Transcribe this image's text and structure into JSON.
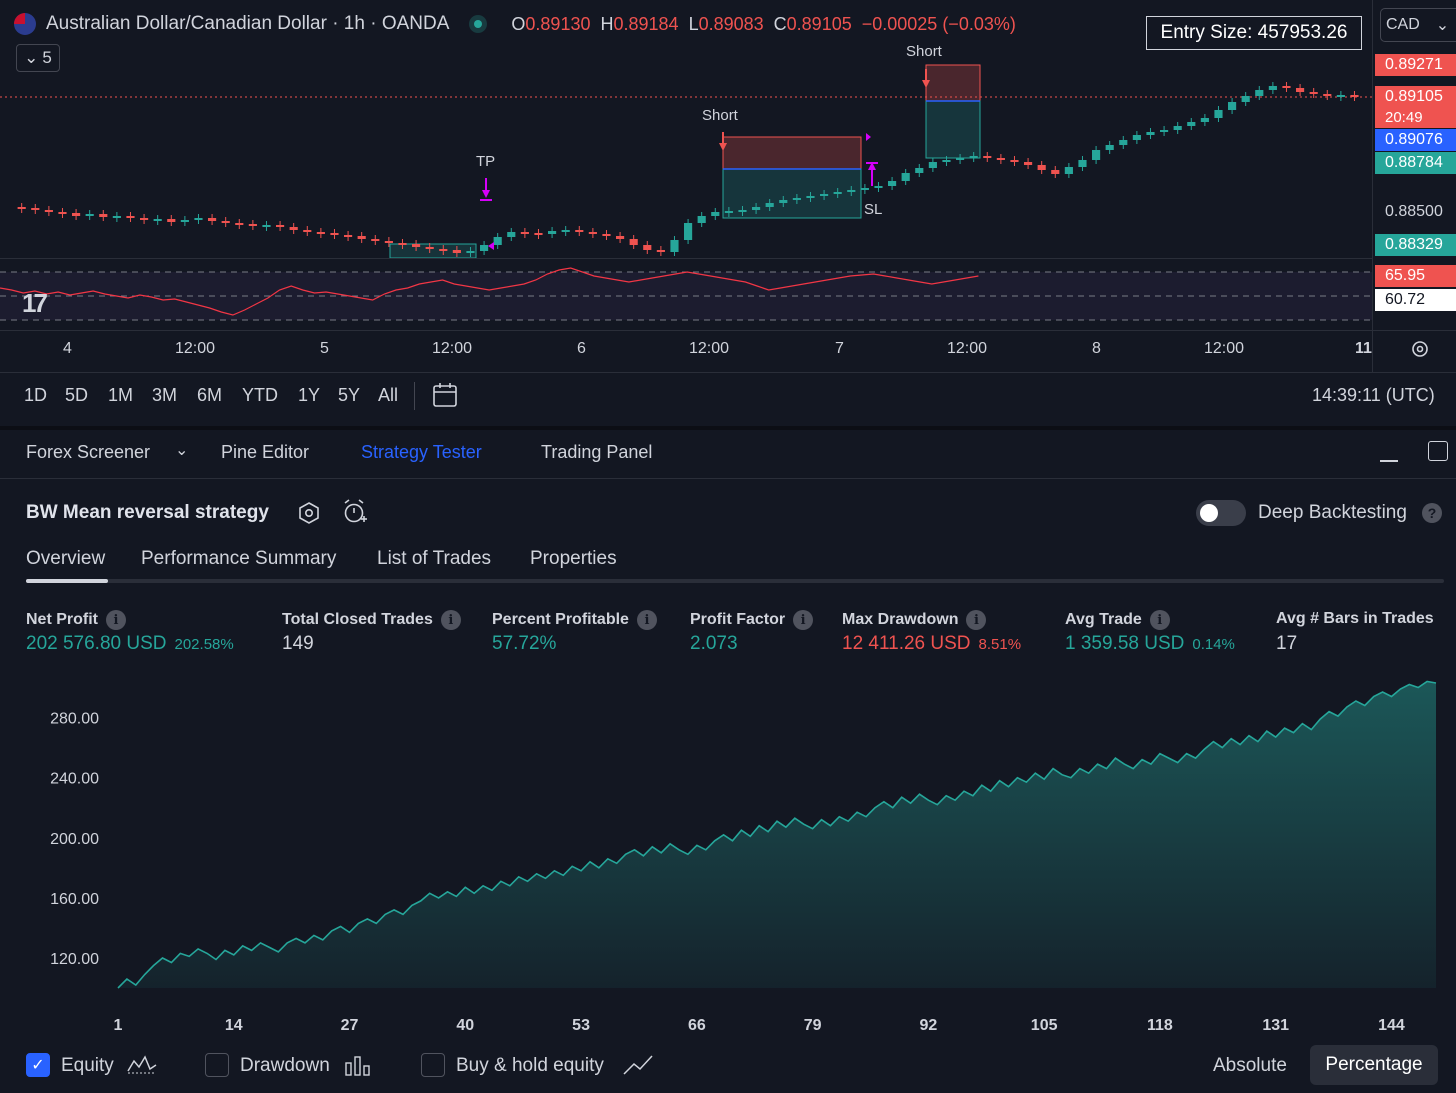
{
  "header": {
    "symbol_title": "Australian Dollar/Canadian Dollar · 1h · OANDA",
    "ohlc": {
      "open_key": "O",
      "open": "0.89130",
      "high_key": "H",
      "high": "0.89184",
      "low_key": "L",
      "low": "0.89083",
      "close_key": "C",
      "close": "0.89105",
      "change": "−0.00025 (−0.03%)"
    },
    "indicator_count": "5",
    "entry_size": "Entry Size: 457953.26",
    "currency": "CAD"
  },
  "price_scale": {
    "tag_short_top": "0.89271",
    "tag_last": "0.89105",
    "tag_countdown": "20:49",
    "tag_blue": "0.89076",
    "tag_green_top": "0.88784",
    "plain_1": "0.88500",
    "tag_green_bottom": "0.88329",
    "rsi_red": "65.95",
    "rsi_white": "60.72"
  },
  "chart_labels": {
    "tp": "TP",
    "short_1": "Short",
    "short_2": "Short",
    "sl": "SL"
  },
  "x_axis": [
    "4",
    "12:00",
    "5",
    "12:00",
    "6",
    "12:00",
    "7",
    "12:00",
    "8",
    "12:00",
    "11"
  ],
  "timeframes": [
    "1D",
    "5D",
    "1M",
    "3M",
    "6M",
    "YTD",
    "1Y",
    "5Y",
    "All"
  ],
  "clock": "14:39:11 (UTC)",
  "panel_tabs": [
    "Forex Screener",
    "Pine Editor",
    "Strategy Tester",
    "Trading Panel"
  ],
  "strategy": {
    "name": "BW Mean reversal strategy",
    "deep_backtesting": "Deep Backtesting",
    "help": "?",
    "sub_tabs": [
      "Overview",
      "Performance Summary",
      "List of Trades",
      "Properties"
    ]
  },
  "metrics": {
    "net_profit": {
      "label": "Net Profit",
      "value": "202 576.80 USD",
      "pct": "202.58%"
    },
    "total_closed_trades": {
      "label": "Total Closed Trades",
      "value": "149"
    },
    "percent_profitable": {
      "label": "Percent Profitable",
      "value": "57.72%"
    },
    "profit_factor": {
      "label": "Profit Factor",
      "value": "2.073"
    },
    "max_drawdown": {
      "label": "Max Drawdown",
      "value": "12 411.26 USD",
      "pct": "8.51%"
    },
    "avg_trade": {
      "label": "Avg Trade",
      "value": "1 359.58 USD",
      "pct": "0.14%"
    },
    "avg_bars": {
      "label": "Avg # Bars in Trades",
      "value": "17"
    }
  },
  "legend": {
    "equity": "Equity",
    "drawdown": "Drawdown",
    "buy_hold": "Buy & hold equity",
    "absolute": "Absolute",
    "percentage": "Percentage"
  },
  "colors": {
    "up": "#26a69a",
    "down": "#ef5350",
    "accent": "#2962ff",
    "rsi": "#f23645"
  },
  "chart_data": {
    "type": "area",
    "series": [
      {
        "x": [
          1,
          2,
          3,
          4,
          5,
          6,
          7,
          8,
          9,
          10,
          11,
          12,
          13,
          14,
          15,
          16,
          17,
          18,
          19,
          20,
          21,
          22,
          23,
          24,
          25,
          26,
          27,
          28,
          29,
          30,
          31,
          32,
          33,
          34,
          35,
          36,
          37,
          38,
          39,
          40,
          41,
          42,
          43,
          44,
          45,
          46,
          47,
          48,
          49,
          50,
          51,
          52,
          53,
          54,
          55,
          56,
          57,
          58,
          59,
          60,
          61,
          62,
          63,
          64,
          65,
          66,
          67,
          68,
          69,
          70,
          71,
          72,
          73,
          74,
          75,
          76,
          77,
          78,
          79,
          80,
          81,
          82,
          83,
          84,
          85,
          86,
          87,
          88,
          89,
          90,
          91,
          92,
          93,
          94,
          95,
          96,
          97,
          98,
          99,
          100,
          101,
          102,
          103,
          104,
          105,
          106,
          107,
          108,
          109,
          110,
          111,
          112,
          113,
          114,
          115,
          116,
          117,
          118,
          119,
          120,
          121,
          122,
          123,
          124,
          125,
          126,
          127,
          128,
          129,
          130,
          131,
          132,
          133,
          134,
          135,
          136,
          137,
          138,
          139,
          140,
          141,
          142,
          143,
          144,
          145,
          146,
          147,
          148,
          149
        ],
        "values": [
          100,
          106,
          102,
          109,
          115,
          120,
          117,
          123,
          121,
          126,
          123,
          119,
          125,
          122,
          128,
          125,
          130,
          127,
          124,
          130,
          133,
          130,
          135,
          132,
          138,
          141,
          137,
          143,
          146,
          143,
          149,
          152,
          149,
          155,
          158,
          163,
          160,
          164,
          161,
          167,
          163,
          168,
          165,
          171,
          168,
          174,
          171,
          176,
          173,
          178,
          175,
          181,
          178,
          184,
          180,
          186,
          183,
          189,
          192,
          188,
          194,
          190,
          196,
          192,
          189,
          195,
          192,
          198,
          202,
          198,
          205,
          201,
          208,
          204,
          211,
          207,
          213,
          209,
          206,
          212,
          208,
          214,
          211,
          217,
          214,
          220,
          224,
          220,
          227,
          223,
          229,
          225,
          222,
          228,
          225,
          231,
          228,
          235,
          231,
          238,
          234,
          240,
          237,
          243,
          239,
          246,
          242,
          240,
          246,
          243,
          249,
          246,
          253,
          249,
          246,
          252,
          249,
          256,
          253,
          250,
          256,
          253,
          259,
          264,
          260,
          266,
          262,
          268,
          264,
          271,
          267,
          273,
          270,
          276,
          272,
          279,
          284,
          281,
          287,
          291,
          288,
          294,
          297,
          294,
          299,
          302,
          300,
          304,
          303
        ],
        "color": "#26a69a"
      }
    ],
    "x_ticks": [
      1,
      14,
      27,
      40,
      53,
      66,
      79,
      92,
      105,
      118,
      131,
      144
    ],
    "y_ticks": [
      "120.00",
      "160.00",
      "200.00",
      "240.00",
      "280.00"
    ],
    "y_tick_values": [
      120,
      160,
      200,
      240,
      280
    ],
    "xlim": [
      1,
      149
    ],
    "ylim": [
      100,
      305
    ],
    "grid": false,
    "title": "",
    "xlabel": "",
    "ylabel": ""
  }
}
